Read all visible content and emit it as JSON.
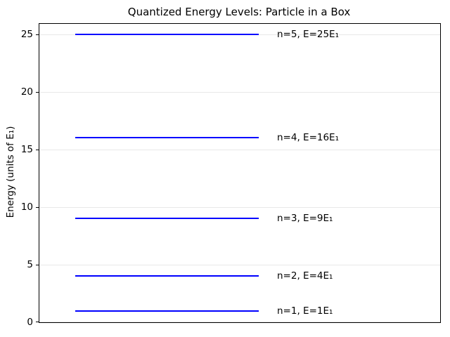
{
  "title": "Quantized Energy Levels: Particle in a Box",
  "chart_data": {
    "type": "line",
    "title": "Quantized Energy Levels: Particle in a Box",
    "xlabel": "",
    "ylabel": "Energy (units of E₁)",
    "ylim": [
      0,
      25.9
    ],
    "xlim": [
      0,
      1
    ],
    "yticks": [
      0,
      5,
      10,
      15,
      20,
      25
    ],
    "xticks": [],
    "grid": "horizontal gridlines at y ticks, light gray",
    "legend_position": "none",
    "colors": {
      "level_line": "#0000ff",
      "grid": "#e8e8e8",
      "axis": "#000000",
      "text": "#000000",
      "background": "#ffffff"
    },
    "line_span": {
      "x_start": 0.09,
      "x_end": 0.547,
      "label_x": 0.593
    },
    "levels": [
      {
        "n": 1,
        "energy": 1,
        "label": "n=1, E=1E₁"
      },
      {
        "n": 2,
        "energy": 4,
        "label": "n=2, E=4E₁"
      },
      {
        "n": 3,
        "energy": 9,
        "label": "n=3, E=9E₁"
      },
      {
        "n": 4,
        "energy": 16,
        "label": "n=4, E=16E₁"
      },
      {
        "n": 5,
        "energy": 25,
        "label": "n=5, E=25E₁"
      }
    ]
  }
}
